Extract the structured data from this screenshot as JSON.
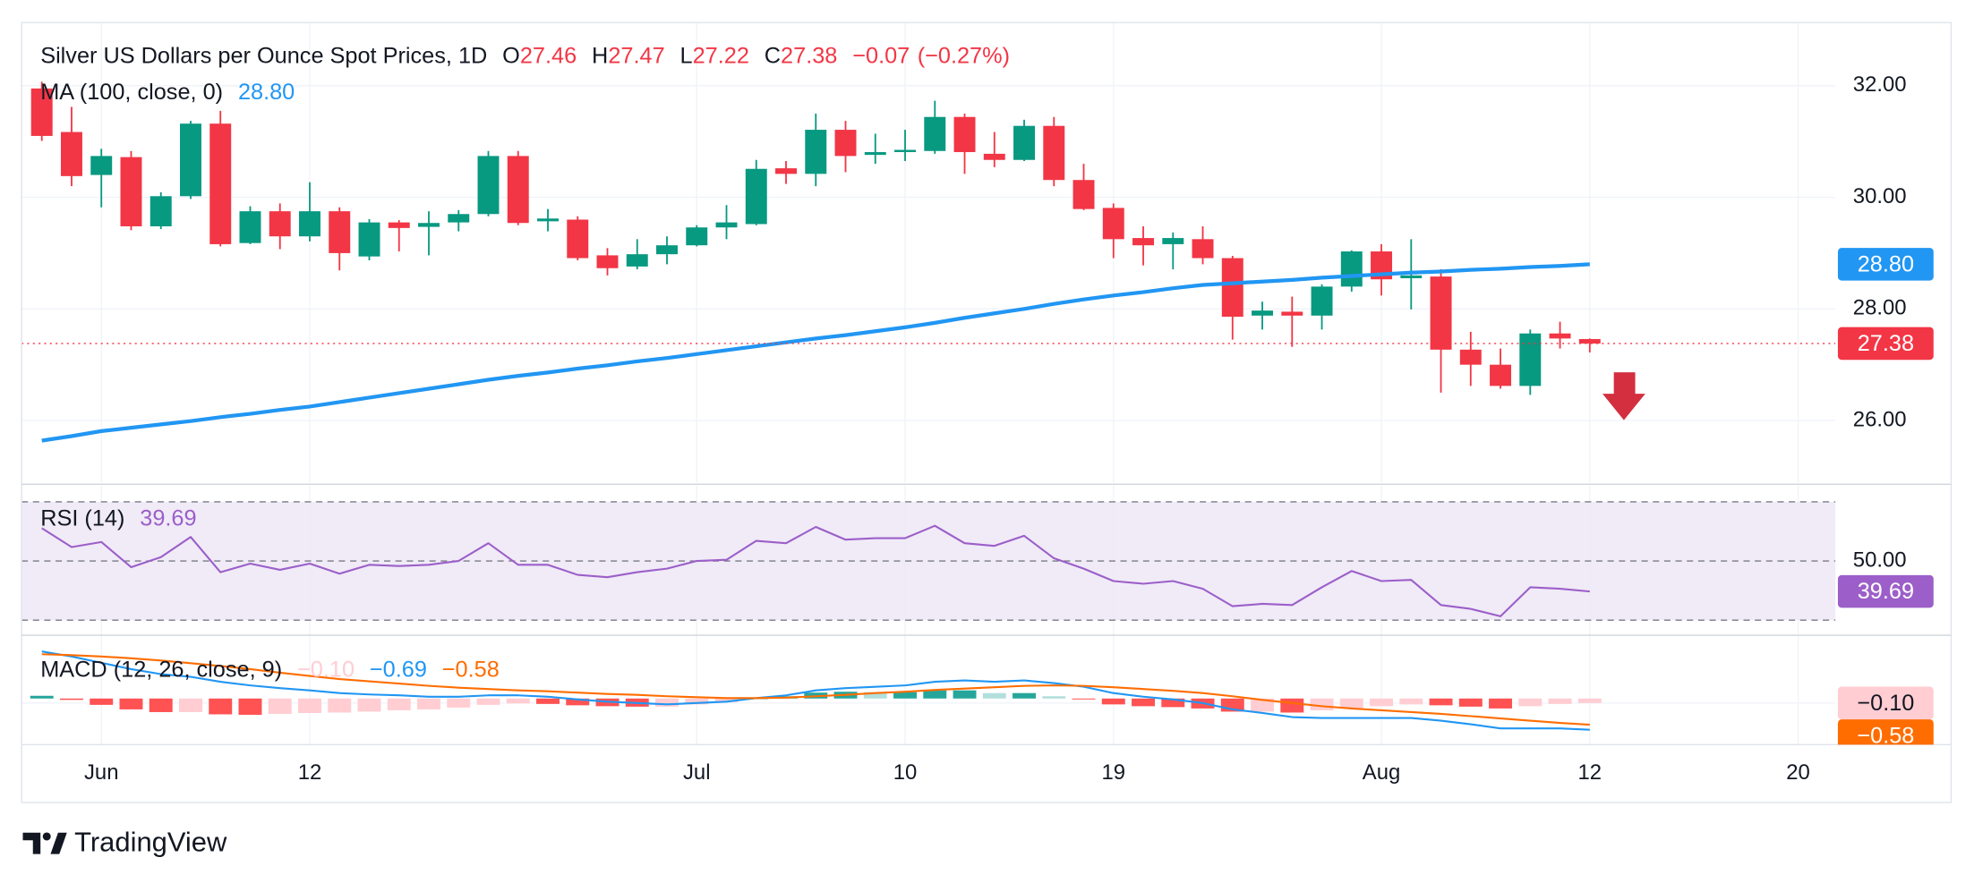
{
  "chart_data": [
    {
      "type": "candlestick",
      "title": "Silver US Dollars per Ounce Spot Prices, 1D",
      "ohlc_legend": [
        {
          "key": "O",
          "value": 27.46
        },
        {
          "key": "H",
          "value": 27.47
        },
        {
          "key": "L",
          "value": 27.22
        },
        {
          "key": "C",
          "value": 27.38
        }
      ],
      "change": {
        "value": -0.07,
        "label": "−0.07"
      },
      "change_pct": {
        "value": -0.27,
        "label": "(−0.27%)"
      },
      "xlim": [
        -0.68,
        60.25
      ],
      "xticks": [
        {
          "value": 2,
          "label": "Jun"
        },
        {
          "value": 9,
          "label": "12"
        },
        {
          "value": 22,
          "label": "Jul"
        },
        {
          "value": 29,
          "label": "10"
        },
        {
          "value": 36,
          "label": "19"
        },
        {
          "value": 45,
          "label": "Aug"
        },
        {
          "value": 52,
          "label": "12"
        },
        {
          "value": 59,
          "label": "20"
        }
      ],
      "open": [
        31.95,
        31.17,
        30.4,
        30.72,
        29.48,
        30.02,
        31.32,
        29.18,
        29.75,
        29.3,
        29.75,
        28.94,
        29.55,
        29.47,
        29.55,
        29.7,
        30.74,
        29.57,
        29.6,
        28.96,
        28.76,
        28.98,
        29.14,
        29.46,
        29.52,
        30.52,
        30.42,
        31.21,
        30.76,
        30.81,
        30.83,
        31.44,
        30.78,
        30.67,
        31.28,
        30.31,
        29.81,
        29.27,
        29.16,
        29.25,
        28.91,
        27.88,
        27.95,
        27.88,
        28.4,
        29.03,
        28.55,
        28.58,
        27.27,
        27.0,
        26.62,
        27.56,
        27.46
      ],
      "high": [
        32.07,
        31.62,
        30.87,
        30.83,
        30.09,
        31.37,
        31.55,
        29.84,
        29.89,
        30.27,
        29.82,
        29.61,
        29.59,
        29.75,
        29.77,
        30.83,
        30.83,
        29.79,
        29.66,
        29.09,
        29.25,
        29.3,
        29.5,
        29.86,
        30.67,
        30.65,
        31.5,
        31.37,
        31.14,
        31.21,
        31.73,
        31.5,
        31.17,
        31.39,
        31.44,
        30.6,
        29.89,
        29.48,
        29.37,
        29.48,
        28.95,
        28.13,
        28.22,
        28.44,
        29.05,
        29.16,
        29.25,
        28.71,
        27.59,
        27.29,
        27.63,
        27.77,
        27.47
      ],
      "low": [
        31.01,
        30.2,
        29.82,
        29.41,
        29.43,
        29.97,
        29.12,
        29.16,
        29.07,
        29.21,
        28.69,
        28.87,
        29.03,
        28.96,
        29.39,
        29.66,
        29.5,
        29.39,
        28.87,
        28.6,
        28.71,
        28.8,
        29.12,
        29.25,
        29.5,
        30.24,
        30.2,
        30.45,
        30.6,
        30.65,
        30.78,
        30.42,
        30.54,
        30.65,
        30.2,
        29.77,
        28.91,
        28.78,
        28.71,
        28.8,
        27.45,
        27.63,
        27.32,
        27.63,
        28.31,
        28.24,
        27.99,
        26.5,
        26.62,
        26.57,
        26.46,
        27.29,
        27.22
      ],
      "close": [
        31.1,
        30.38,
        30.74,
        29.48,
        30.02,
        31.32,
        29.16,
        29.75,
        29.3,
        29.75,
        29.0,
        29.55,
        29.45,
        29.54,
        29.7,
        30.74,
        29.54,
        29.62,
        28.91,
        28.73,
        28.98,
        29.14,
        29.46,
        29.55,
        30.51,
        30.42,
        31.21,
        30.74,
        30.81,
        30.85,
        31.44,
        30.81,
        30.67,
        31.28,
        30.31,
        29.79,
        29.25,
        29.14,
        29.27,
        28.91,
        27.86,
        27.97,
        27.88,
        28.4,
        29.03,
        28.53,
        28.6,
        27.27,
        27.0,
        26.62,
        27.56,
        27.47,
        27.38
      ],
      "up_color": "#089981",
      "down_color": "#f23645",
      "ylim": [
        24.88,
        33.13
      ],
      "yticks": [
        {
          "value": 32,
          "label": "32.00"
        },
        {
          "value": 30,
          "label": "30.00"
        },
        {
          "value": 28,
          "label": "28.00"
        },
        {
          "value": 26,
          "label": "26.00"
        }
      ],
      "grid": true,
      "series": [
        {
          "name": "MA (100, close, 0)",
          "color": "#2196f3",
          "last_label": "28.80",
          "values": [
            25.64,
            25.72,
            25.81,
            25.87,
            25.93,
            25.99,
            26.06,
            26.12,
            26.19,
            26.25,
            26.33,
            26.41,
            26.49,
            26.57,
            26.65,
            26.73,
            26.8,
            26.86,
            26.93,
            26.99,
            27.06,
            27.12,
            27.19,
            27.26,
            27.33,
            27.4,
            27.47,
            27.53,
            27.6,
            27.67,
            27.75,
            27.84,
            27.92,
            28.0,
            28.09,
            28.17,
            28.24,
            28.3,
            28.37,
            28.43,
            28.46,
            28.49,
            28.52,
            28.56,
            28.59,
            28.62,
            28.65,
            28.67,
            28.7,
            28.72,
            28.75,
            28.77,
            28.8
          ]
        }
      ]
    },
    {
      "type": "line",
      "ylim": [
        24.9,
        75.5
      ],
      "yticks": [
        {
          "value": 50,
          "label": "50.00"
        }
      ],
      "bands": [
        30,
        70
      ],
      "band_color": "#ede7f6",
      "series": [
        {
          "name": "RSI (14)",
          "color": "#9c5fc9",
          "last_label": "39.69",
          "values": [
            61.1,
            54.7,
            56.4,
            47.9,
            51.3,
            58.1,
            46.2,
            49.1,
            47.0,
            49.1,
            45.7,
            48.7,
            48.3,
            48.7,
            50.0,
            56.0,
            48.7,
            48.7,
            45.3,
            44.5,
            46.2,
            47.4,
            50.0,
            50.4,
            56.8,
            56.0,
            61.5,
            57.2,
            57.7,
            57.7,
            61.9,
            56.0,
            55.1,
            58.5,
            50.9,
            47.4,
            43.2,
            42.3,
            43.2,
            40.6,
            34.7,
            35.5,
            35.1,
            41.1,
            46.6,
            43.2,
            43.6,
            35.1,
            33.8,
            31.3,
            41.1,
            40.6,
            39.69
          ]
        }
      ]
    },
    {
      "type": "macd",
      "title": "MACD (12, 26, close, 9)",
      "ylim": [
        -1.02,
        1.4
      ],
      "yticks": [
        {
          "value": -0.1,
          "label": "−0.10"
        }
      ],
      "series": [
        {
          "colors": [
            "#26a69a",
            "#b2dfdb",
            "#ff5252",
            "#ffcdd2"
          ],
          "last_label": "−0.10",
          "values": [
            0.06,
            -0.03,
            -0.14,
            -0.24,
            -0.3,
            -0.3,
            -0.35,
            -0.36,
            -0.34,
            -0.32,
            -0.31,
            -0.29,
            -0.26,
            -0.24,
            -0.2,
            -0.14,
            -0.11,
            -0.12,
            -0.15,
            -0.17,
            -0.18,
            -0.18,
            -0.13,
            -0.08,
            0.0,
            0.05,
            0.13,
            0.15,
            0.14,
            0.14,
            0.18,
            0.18,
            0.12,
            0.12,
            0.05,
            -0.02,
            -0.13,
            -0.17,
            -0.19,
            -0.22,
            -0.29,
            -0.29,
            -0.31,
            -0.26,
            -0.21,
            -0.17,
            -0.13,
            -0.15,
            -0.18,
            -0.22,
            -0.17,
            -0.12,
            -0.1
          ]
        },
        {
          "color": "#2196f3",
          "last_label": "−0.69",
          "values": [
            1.04,
            0.93,
            0.79,
            0.65,
            0.54,
            0.48,
            0.37,
            0.29,
            0.23,
            0.18,
            0.12,
            0.09,
            0.07,
            0.04,
            0.04,
            0.07,
            0.07,
            0.04,
            -0.02,
            -0.07,
            -0.1,
            -0.13,
            -0.1,
            -0.07,
            0.01,
            0.07,
            0.18,
            0.23,
            0.26,
            0.29,
            0.37,
            0.4,
            0.37,
            0.4,
            0.34,
            0.26,
            0.12,
            0.04,
            -0.02,
            -0.1,
            -0.24,
            -0.32,
            -0.41,
            -0.43,
            -0.43,
            -0.43,
            -0.43,
            -0.49,
            -0.57,
            -0.66,
            -0.66,
            -0.66,
            -0.69
          ]
        },
        {
          "color": "#ff6d00",
          "last_label": "−0.58",
          "values": [
            0.98,
            0.96,
            0.93,
            0.89,
            0.84,
            0.78,
            0.72,
            0.65,
            0.57,
            0.5,
            0.43,
            0.38,
            0.33,
            0.28,
            0.24,
            0.21,
            0.18,
            0.16,
            0.13,
            0.1,
            0.08,
            0.05,
            0.03,
            0.01,
            0.01,
            0.02,
            0.05,
            0.08,
            0.12,
            0.15,
            0.19,
            0.22,
            0.25,
            0.28,
            0.29,
            0.28,
            0.25,
            0.21,
            0.17,
            0.12,
            0.05,
            -0.03,
            -0.1,
            -0.17,
            -0.22,
            -0.26,
            -0.3,
            -0.34,
            -0.39,
            -0.44,
            -0.49,
            -0.54,
            -0.58
          ]
        }
      ]
    }
  ],
  "footer": {
    "brand": "TradingView"
  }
}
